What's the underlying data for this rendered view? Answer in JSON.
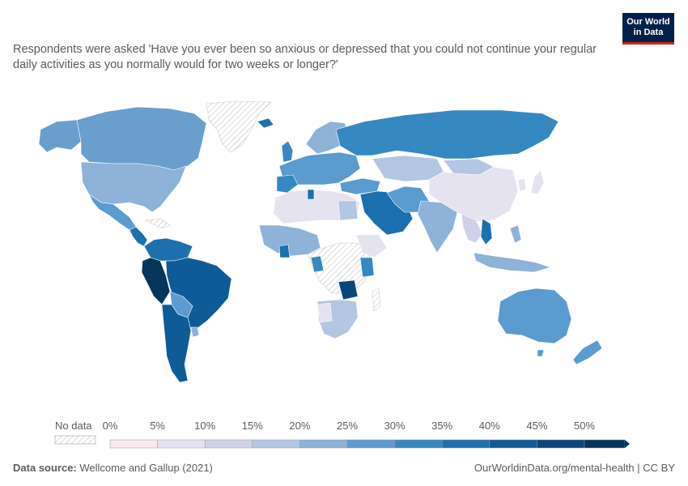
{
  "subtitle": "Respondents were asked 'Have you ever been so anxious or depressed that you could not continue your regular daily activities as you normally would for two weeks or longer?'",
  "logo": {
    "line1": "Our World",
    "line2": "in Data",
    "bg": "#002147",
    "accent": "#ce261e"
  },
  "legend": {
    "no_data_label": "No data",
    "bins": [
      "0%",
      "5%",
      "10%",
      "15%",
      "20%",
      "25%",
      "30%",
      "35%",
      "40%",
      "45%",
      "50%"
    ],
    "colors": [
      "#fbe9ef",
      "#e6e3f1",
      "#cfd1e7",
      "#b3c6e2",
      "#8eb2d8",
      "#5b9bcf",
      "#3589c0",
      "#1c70ad",
      "#0f5b97",
      "#0a467a",
      "#073559"
    ]
  },
  "footer": {
    "source_label": "Data source:",
    "source": "Wellcome and Gallup (2021)",
    "link": "OurWorldinData.org/mental-health | CC BY"
  }
}
